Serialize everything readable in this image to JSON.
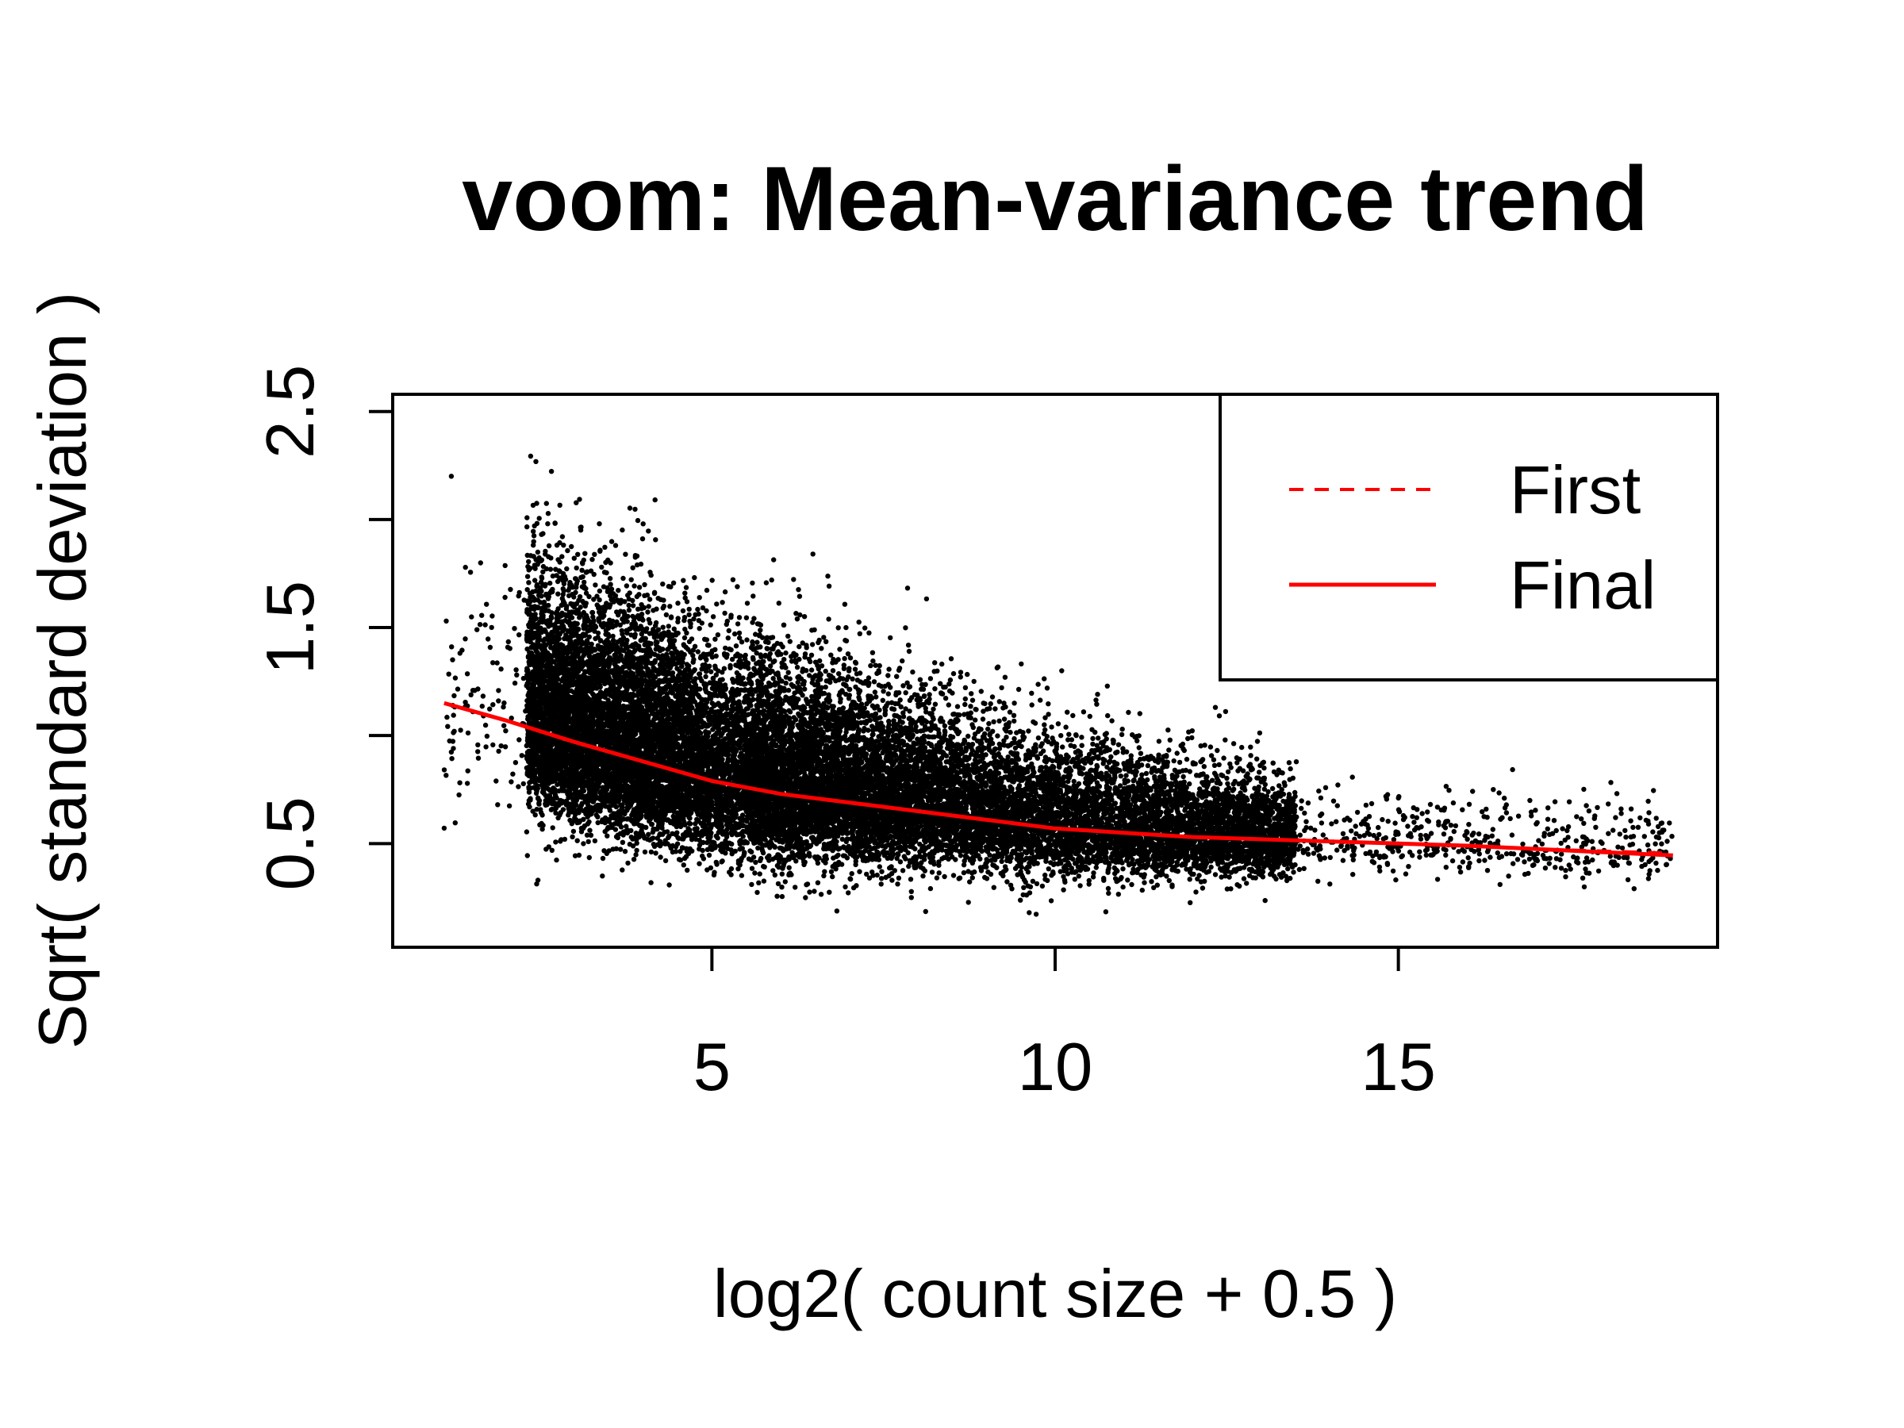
{
  "chart_data": {
    "type": "scatter",
    "title": "voom: Mean-variance trend",
    "xlabel": "log2( count size + 0.5 )",
    "ylabel": "Sqrt( standard deviation )",
    "xlim": [
      0.35,
      19.65
    ],
    "ylim": [
      0.02,
      2.58
    ],
    "x_ticks": [
      {
        "value": 5,
        "label": "5"
      },
      {
        "value": 10,
        "label": "10"
      },
      {
        "value": 15,
        "label": "15"
      }
    ],
    "y_ticks": [
      {
        "value": 0.5,
        "label": "0.5"
      },
      {
        "value": 1.0,
        "label": ""
      },
      {
        "value": 1.5,
        "label": "1.5"
      },
      {
        "value": 2.0,
        "label": ""
      },
      {
        "value": 2.5,
        "label": "2.5"
      }
    ],
    "grid": false,
    "legend_position": "top-right",
    "colors": {
      "points": "#000000",
      "trend": "#ff0000"
    },
    "points_note_count": 20000,
    "series": [
      {
        "name": "First",
        "style": "dashed",
        "color": "#ff0000",
        "x": [
          1.1,
          2,
          3,
          4,
          5,
          6,
          7,
          8,
          9,
          10,
          11,
          12,
          13,
          14,
          15,
          16,
          17,
          18,
          19
        ],
        "y": [
          1.15,
          1.07,
          0.97,
          0.88,
          0.79,
          0.73,
          0.69,
          0.65,
          0.61,
          0.57,
          0.55,
          0.53,
          0.52,
          0.51,
          0.5,
          0.49,
          0.475,
          0.465,
          0.455
        ]
      },
      {
        "name": "Final",
        "style": "solid",
        "color": "#ff0000",
        "x": [
          1.1,
          2,
          3,
          4,
          5,
          6,
          7,
          8,
          9,
          10,
          11,
          12,
          13,
          14,
          15,
          16,
          17,
          18,
          19
        ],
        "y": [
          1.15,
          1.07,
          0.97,
          0.88,
          0.79,
          0.73,
          0.69,
          0.65,
          0.61,
          0.57,
          0.55,
          0.53,
          0.52,
          0.51,
          0.5,
          0.49,
          0.475,
          0.46,
          0.445
        ]
      }
    ]
  }
}
